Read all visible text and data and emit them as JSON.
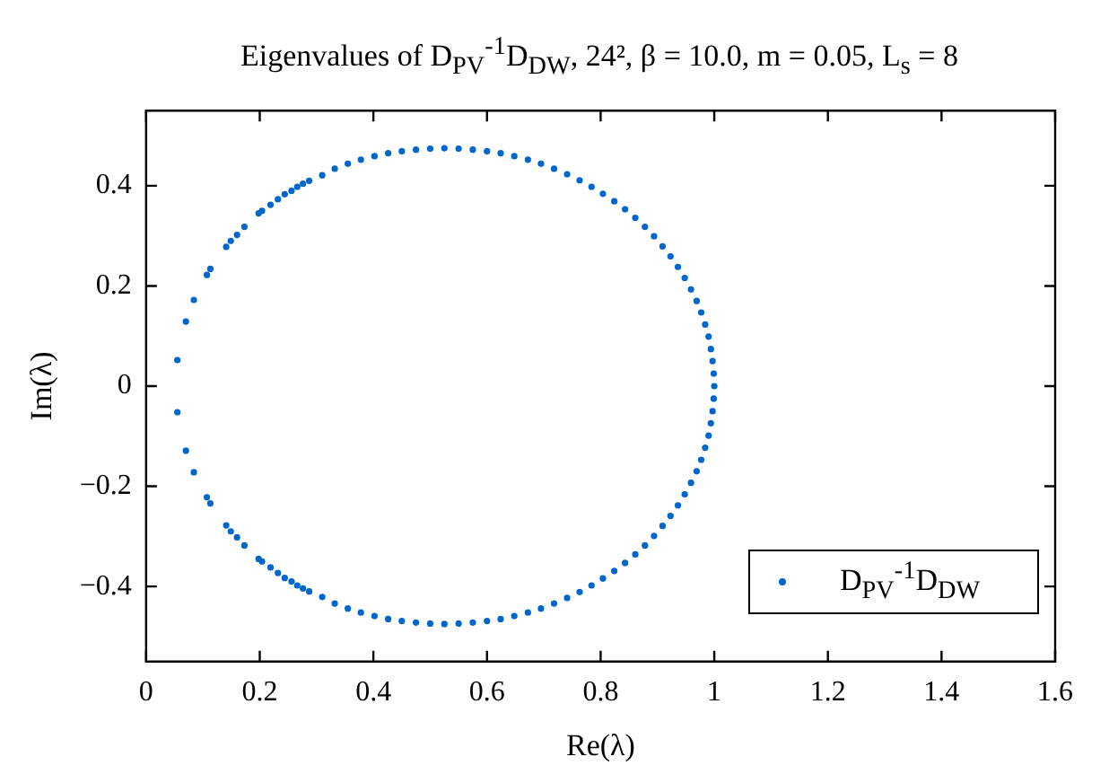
{
  "chart_data": {
    "type": "scatter",
    "title": "Eigenvalues of D$_{PV}$$^{-1}$D$_{DW}$, 24², β = 10.0, m = 0.05, L$_{s}$ = 8",
    "xlabel": "Re(λ)",
    "ylabel": "Im(λ)",
    "xlim": [
      0,
      1.6
    ],
    "xticks": [
      0,
      0.2,
      0.4,
      0.6,
      0.8,
      1,
      1.2,
      1.4,
      1.6
    ],
    "ylim": [
      -0.55,
      0.55
    ],
    "yticks": [
      {
        "value": -0.4,
        "label": "−0.4"
      },
      {
        "value": -0.2,
        "label": "−0.2"
      },
      0,
      0.2,
      0.4
    ],
    "grid": false,
    "legend": "bottom right",
    "marker": "circle",
    "series": [
      {
        "name": "D$_{PV}$$^{-1}$D$_{DW}$",
        "color": "#0066cc",
        "x": [
          0.055,
          0.07,
          0.084,
          0.107,
          0.113,
          0.141,
          0.149,
          0.16,
          0.173,
          0.198,
          0.204,
          0.219,
          0.232,
          0.244,
          0.256,
          0.266,
          0.276,
          0.287,
          0.31,
          0.332,
          0.355,
          0.378,
          0.402,
          0.426,
          0.45,
          0.475,
          0.5,
          0.525,
          0.55,
          0.575,
          0.6,
          0.624,
          0.648,
          0.672,
          0.695,
          0.718,
          0.741,
          0.763,
          0.784,
          0.804,
          0.824,
          0.843,
          0.861,
          0.878,
          0.894,
          0.909,
          0.923,
          0.936,
          0.948,
          0.959,
          0.969,
          0.977,
          0.984,
          0.99,
          0.994,
          0.997,
          0.999,
          1.0,
          0.999,
          0.997,
          0.994,
          0.99,
          0.984,
          0.977,
          0.969,
          0.959,
          0.948,
          0.936,
          0.923,
          0.909,
          0.894,
          0.878,
          0.861,
          0.843,
          0.824,
          0.804,
          0.784,
          0.763,
          0.741,
          0.718,
          0.695,
          0.672,
          0.648,
          0.624,
          0.6,
          0.575,
          0.55,
          0.525,
          0.5,
          0.475,
          0.45,
          0.426,
          0.402,
          0.378,
          0.355,
          0.332,
          0.31,
          0.287,
          0.276,
          0.266,
          0.256,
          0.244,
          0.232,
          0.219,
          0.204,
          0.198,
          0.173,
          0.16,
          0.149,
          0.141,
          0.113,
          0.107,
          0.084,
          0.07,
          0.055
        ],
        "values": [
          0.052,
          0.129,
          0.172,
          0.222,
          0.234,
          0.278,
          0.29,
          0.302,
          0.318,
          0.345,
          0.35,
          0.362,
          0.373,
          0.383,
          0.39,
          0.398,
          0.404,
          0.41,
          0.421,
          0.434,
          0.444,
          0.452,
          0.459,
          0.465,
          0.469,
          0.472,
          0.474,
          0.475,
          0.474,
          0.472,
          0.469,
          0.465,
          0.459,
          0.452,
          0.444,
          0.434,
          0.423,
          0.411,
          0.398,
          0.384,
          0.369,
          0.353,
          0.336,
          0.318,
          0.299,
          0.279,
          0.259,
          0.238,
          0.216,
          0.193,
          0.17,
          0.147,
          0.123,
          0.099,
          0.074,
          0.05,
          0.025,
          0,
          -0.025,
          -0.05,
          -0.074,
          -0.099,
          -0.123,
          -0.147,
          -0.17,
          -0.193,
          -0.216,
          -0.238,
          -0.259,
          -0.279,
          -0.299,
          -0.318,
          -0.336,
          -0.353,
          -0.369,
          -0.384,
          -0.398,
          -0.411,
          -0.423,
          -0.434,
          -0.444,
          -0.452,
          -0.459,
          -0.465,
          -0.469,
          -0.472,
          -0.474,
          -0.475,
          -0.474,
          -0.472,
          -0.469,
          -0.465,
          -0.459,
          -0.452,
          -0.444,
          -0.434,
          -0.421,
          -0.41,
          -0.404,
          -0.398,
          -0.39,
          -0.383,
          -0.373,
          -0.362,
          -0.35,
          -0.345,
          -0.318,
          -0.302,
          -0.29,
          -0.278,
          -0.234,
          -0.222,
          -0.172,
          -0.129,
          -0.052
        ]
      }
    ]
  }
}
